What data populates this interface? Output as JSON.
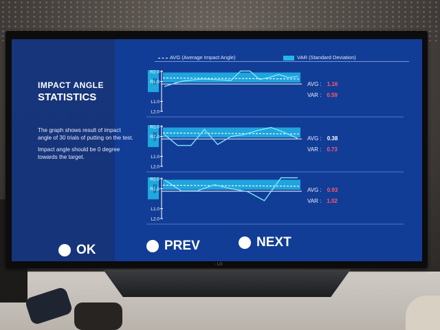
{
  "screen": {
    "title_line1": "IMPACT ANGLE",
    "title_line2": "STATISTICS",
    "description_p1": "The graph shows result of impact angle of 30 trials of putting on the test.",
    "description_p2": "Impact angle should be 0 degree towards the target."
  },
  "legend": {
    "avg_label": "AVG (Average Impact Angle)",
    "var_label": "VAR (Standard Deviation)"
  },
  "y_ticks": [
    "R2.0",
    "R1.0",
    "L1.0",
    "L2.0"
  ],
  "graphs": [
    {
      "distance_label": "3m",
      "avg_caption": "AVG :",
      "avg_value": "1.16",
      "var_caption": "VAR :",
      "var_value": "0.59",
      "avg_color": "#ff5a6e",
      "series": [
        0.5,
        0.8,
        1.05,
        1.15,
        1.25,
        1.2,
        1.15,
        1.1,
        2.05,
        2.05,
        1.2,
        1.4,
        1.7,
        1.4,
        1.5
      ]
    },
    {
      "distance_label": "10m",
      "avg_caption": "AVG :",
      "avg_value": "0.38",
      "var_caption": "VAR :",
      "var_value": "0.73",
      "avg_color": "#ffffff",
      "series": [
        1.2,
        0.1,
        0.1,
        1.7,
        0.2,
        1.0,
        1.2,
        1.6,
        1.9,
        1.4,
        0.8
      ]
    },
    {
      "distance_label": "15m",
      "avg_caption": "AVG :",
      "avg_value": "0.93",
      "var_caption": "VAR :",
      "var_value": "1.02",
      "avg_color": "#ff5a6e",
      "series": [
        1.9,
        0.8,
        0.8,
        1.4,
        1.0,
        0.7,
        -0.2,
        2.1,
        2.1
      ]
    }
  ],
  "nav": {
    "ok_label": "OK",
    "prev_label": "PREV",
    "next_label": "NEXT"
  },
  "colors": {
    "screen_bg": "#123d96",
    "var_band": "#23b6ea",
    "line": "#7fe6ff"
  }
}
